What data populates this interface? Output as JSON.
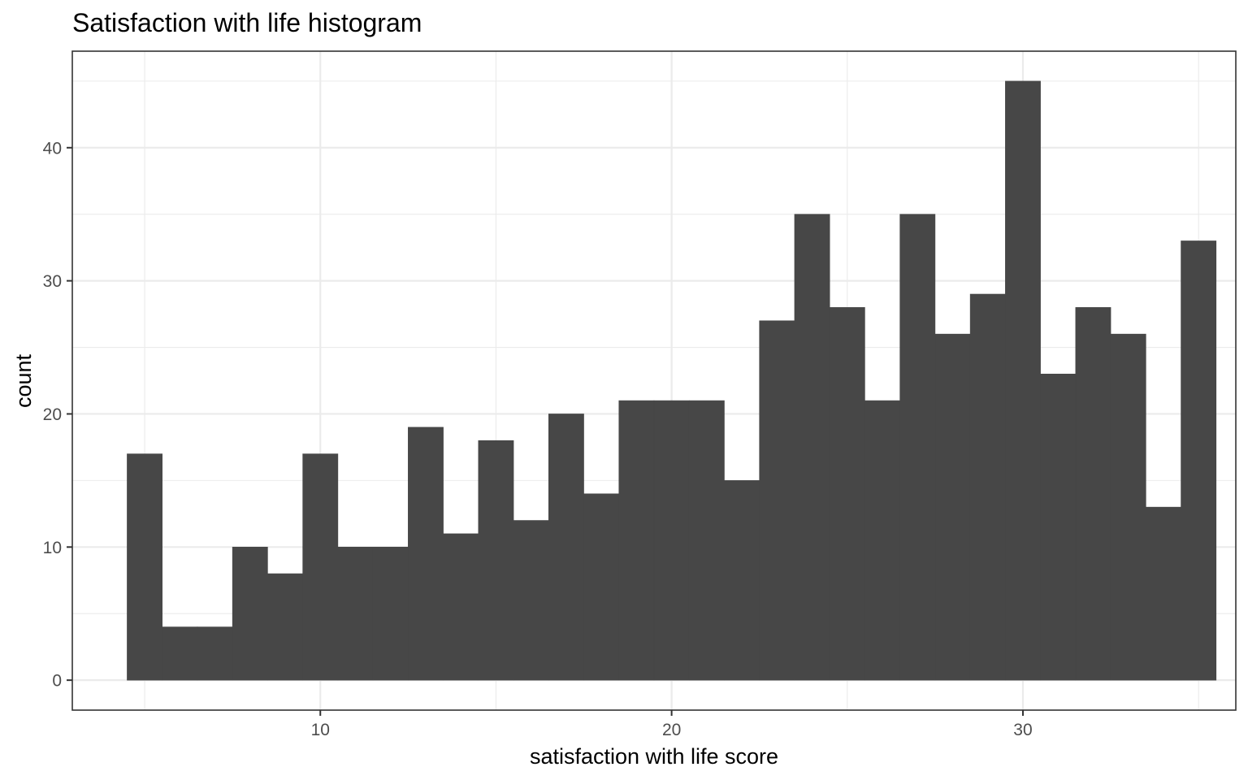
{
  "chart_data": {
    "type": "bar",
    "title": "Satisfaction with life histogram",
    "xlabel": "satisfaction with life score",
    "ylabel": "count",
    "x": [
      5,
      6,
      7,
      8,
      9,
      10,
      11,
      12,
      13,
      14,
      15,
      16,
      17,
      18,
      19,
      20,
      21,
      22,
      23,
      24,
      25,
      26,
      27,
      28,
      29,
      30,
      31,
      32,
      33,
      34,
      35
    ],
    "values": [
      17,
      4,
      4,
      10,
      8,
      17,
      10,
      10,
      19,
      11,
      18,
      12,
      20,
      14,
      21,
      21,
      21,
      15,
      27,
      35,
      28,
      21,
      35,
      26,
      29,
      45,
      23,
      28,
      26,
      13,
      33
    ],
    "bin_width": 1,
    "xlim": [
      2.94,
      36.06
    ],
    "ylim": [
      -2.25,
      47.25
    ],
    "x_ticks": [
      10,
      20,
      30
    ],
    "y_ticks": [
      0,
      10,
      20,
      30,
      40
    ],
    "grid": true,
    "legend": "none",
    "bar_color": "#474747",
    "background": "#ffffff",
    "grid_color": "#ebebeb",
    "border_color": "#333333"
  }
}
